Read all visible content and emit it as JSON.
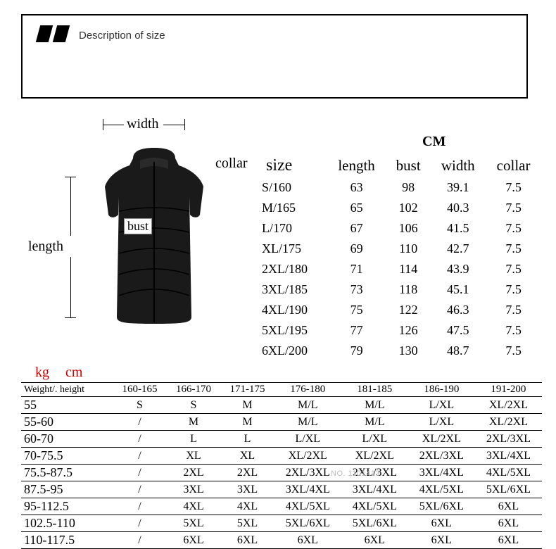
{
  "header": {
    "title": "Description of size"
  },
  "diagram": {
    "width_label": "width",
    "collar_label": "collar",
    "bust_label": "bust",
    "length_label": "length"
  },
  "unit_label": "CM",
  "size_table": {
    "headers": [
      "size",
      "length",
      "bust",
      "width",
      "collar"
    ],
    "rows": [
      [
        "S/160",
        "63",
        "98",
        "39.1",
        "7.5"
      ],
      [
        "M/165",
        "65",
        "102",
        "40.3",
        "7.5"
      ],
      [
        "L/170",
        "67",
        "106",
        "41.5",
        "7.5"
      ],
      [
        "XL/175",
        "69",
        "110",
        "42.7",
        "7.5"
      ],
      [
        "2XL/180",
        "71",
        "114",
        "43.9",
        "7.5"
      ],
      [
        "3XL/185",
        "73",
        "118",
        "45.1",
        "7.5"
      ],
      [
        "4XL/190",
        "75",
        "122",
        "46.3",
        "7.5"
      ],
      [
        "5XL/195",
        "77",
        "126",
        "47.5",
        "7.5"
      ],
      [
        "6XL/200",
        "79",
        "130",
        "48.7",
        "7.5"
      ]
    ]
  },
  "kg_label": "kg",
  "cm_label": "cm",
  "wh_table": {
    "head_label": "Weight/. height",
    "heights": [
      "160-165",
      "166-170",
      "171-175",
      "176-180",
      "181-185",
      "186-190",
      "191-200"
    ],
    "rows": [
      {
        "weight": "55",
        "cells": [
          "S",
          "S",
          "M",
          "M/L",
          "M/L",
          "L/XL",
          "XL/2XL"
        ]
      },
      {
        "weight": "55-60",
        "cells": [
          "/",
          "M",
          "M",
          "M/L",
          "M/L",
          "L/XL",
          "XL/2XL"
        ]
      },
      {
        "weight": "60-70",
        "cells": [
          "/",
          "L",
          "L",
          "L/XL",
          "L/XL",
          "XL/2XL",
          "2XL/3XL"
        ]
      },
      {
        "weight": "70-75.5",
        "cells": [
          "/",
          "XL",
          "XL",
          "XL/2XL",
          "XL/2XL",
          "2XL/3XL",
          "3XL/4XL"
        ]
      },
      {
        "weight": "75.5-87.5",
        "cells": [
          "/",
          "2XL",
          "2XL",
          "2XL/3XL",
          "2XL/3XL",
          "3XL/4XL",
          "4XL/5XL"
        ]
      },
      {
        "weight": "87.5-95",
        "cells": [
          "/",
          "3XL",
          "3XL",
          "3XL/4XL",
          "3XL/4XL",
          "4XL/5XL",
          "5XL/6XL"
        ]
      },
      {
        "weight": "95-112.5",
        "cells": [
          "/",
          "4XL",
          "4XL",
          "4XL/5XL",
          "4XL/5XL",
          "5XL/6XL",
          "6XL"
        ]
      },
      {
        "weight": "102.5-110",
        "cells": [
          "/",
          "5XL",
          "5XL",
          "5XL/6XL",
          "5XL/6XL",
          "6XL",
          "6XL"
        ]
      },
      {
        "weight": "110-117.5",
        "cells": [
          "/",
          "6XL",
          "6XL",
          "6XL",
          "6XL",
          "6XL",
          "6XL"
        ]
      }
    ]
  },
  "watermark": "NO. 1101413",
  "colors": {
    "text": "#000000",
    "accent": "#cc0000",
    "border": "#000000",
    "vest_fill": "#1a1a1a",
    "watermark": "#bbbbbb"
  }
}
